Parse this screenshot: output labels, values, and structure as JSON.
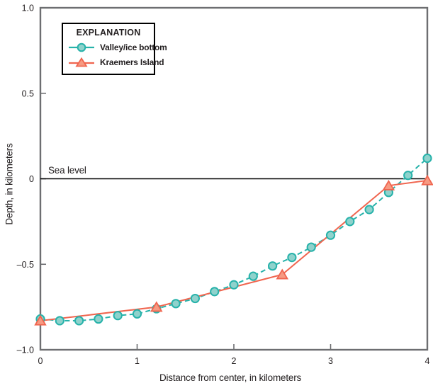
{
  "chart_data": {
    "type": "line",
    "title": "",
    "xlabel": "Distance from center, in kilometers",
    "ylabel": "Depth, in kilometers",
    "xlim": [
      0,
      4
    ],
    "ylim": [
      -1.0,
      1.0
    ],
    "grid": false,
    "x_ticks": [
      0,
      1,
      2,
      3,
      4
    ],
    "x_tick_labels": [
      "0",
      "1",
      "2",
      "3",
      "4"
    ],
    "y_ticks": [
      1.0,
      0.5,
      0,
      -0.5,
      -1.0
    ],
    "y_tick_labels": [
      "1.0",
      "0.5",
      "0",
      "–0.5",
      "–1.0"
    ],
    "annotation": {
      "sea_level_label": "Sea level",
      "sea_level_y": 0
    },
    "legend": {
      "title": "EXPLANATION",
      "position": "top-left"
    },
    "colors": {
      "valley_line": "#27b2aa",
      "valley_fill": "#8fd2cc",
      "kraemers_line": "#f0654f",
      "kraemers_fill": "#f69a82",
      "spine": "#6d6e71",
      "sea_level_line": "#000000"
    },
    "series": [
      {
        "name": "Valley/ice bottom",
        "marker": "circle",
        "line_style": "dashed",
        "x": [
          0,
          0.2,
          0.4,
          0.6,
          0.8,
          1.0,
          1.2,
          1.4,
          1.6,
          1.8,
          2.0,
          2.2,
          2.4,
          2.6,
          2.8,
          3.0,
          3.2,
          3.4,
          3.6,
          3.8,
          4.0
        ],
        "y": [
          -0.82,
          -0.83,
          -0.83,
          -0.82,
          -0.8,
          -0.79,
          -0.76,
          -0.73,
          -0.7,
          -0.66,
          -0.62,
          -0.57,
          -0.51,
          -0.46,
          -0.4,
          -0.33,
          -0.25,
          -0.18,
          -0.08,
          0.02,
          0.12
        ]
      },
      {
        "name": "Kraemers Island",
        "marker": "triangle",
        "line_style": "solid",
        "x": [
          0,
          1.2,
          2.5,
          3.6,
          4.0
        ],
        "y": [
          -0.83,
          -0.75,
          -0.56,
          -0.04,
          -0.01
        ]
      }
    ]
  }
}
